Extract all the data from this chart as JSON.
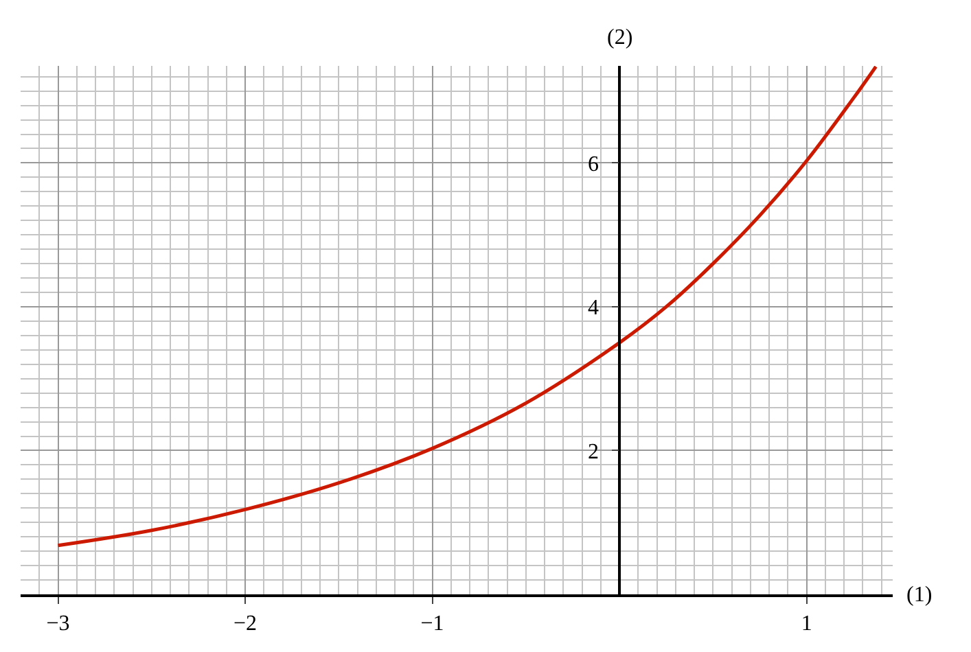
{
  "chart_data": {
    "type": "line",
    "xlabel": "(1)",
    "ylabel": "(2)",
    "x": [
      -3,
      -2.5,
      -2,
      -1.5,
      -1,
      -0.5,
      0,
      0.25,
      0.5,
      0.75,
      1,
      1.25,
      1.37
    ],
    "series": [
      {
        "color": "#cc1a00",
        "values": [
          0.68,
          0.89,
          1.18,
          1.55,
          2.03,
          2.66,
          3.5,
          4.0,
          4.6,
          5.27,
          6.03,
          6.9,
          7.34
        ]
      }
    ],
    "xlim": [
      -3.2,
      1.46
    ],
    "ylim": [
      0,
      7.35
    ],
    "xticks": [
      {
        "value": -3,
        "label": "−3"
      },
      {
        "value": -2,
        "label": "−2"
      },
      {
        "value": -1,
        "label": "−1"
      },
      1
    ],
    "yticks": [
      2,
      4,
      6
    ],
    "grid": true,
    "legend": false,
    "marker": "none",
    "line_style": "solid"
  }
}
